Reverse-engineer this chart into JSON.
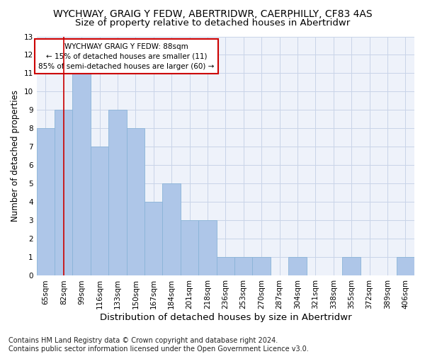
{
  "title": "WYCHWAY, GRAIG Y FEDW, ABERTRIDWR, CAERPHILLY, CF83 4AS",
  "subtitle": "Size of property relative to detached houses in Abertridwr",
  "xlabel": "Distribution of detached houses by size in Abertridwr",
  "ylabel": "Number of detached properties",
  "categories": [
    "65sqm",
    "82sqm",
    "99sqm",
    "116sqm",
    "133sqm",
    "150sqm",
    "167sqm",
    "184sqm",
    "201sqm",
    "218sqm",
    "236sqm",
    "253sqm",
    "270sqm",
    "287sqm",
    "304sqm",
    "321sqm",
    "338sqm",
    "355sqm",
    "372sqm",
    "389sqm",
    "406sqm"
  ],
  "values": [
    8,
    9,
    11,
    7,
    9,
    8,
    4,
    5,
    3,
    3,
    1,
    1,
    1,
    0,
    1,
    0,
    0,
    1,
    0,
    0,
    1
  ],
  "bar_color": "#aec6e8",
  "bar_edge_color": "#8ab4d8",
  "grid_color": "#c8d4e8",
  "annotation_text": "WYCHWAY GRAIG Y FEDW: 88sqm\n← 15% of detached houses are smaller (11)\n85% of semi-detached houses are larger (60) →",
  "annotation_box_color": "#ffffff",
  "annotation_box_edge_color": "#cc0000",
  "vline_color": "#cc0000",
  "vline_x": 1,
  "ylim": [
    0,
    13
  ],
  "yticks": [
    0,
    1,
    2,
    3,
    4,
    5,
    6,
    7,
    8,
    9,
    10,
    11,
    12,
    13
  ],
  "footnote": "Contains HM Land Registry data © Crown copyright and database right 2024.\nContains public sector information licensed under the Open Government Licence v3.0.",
  "title_fontsize": 10,
  "subtitle_fontsize": 9.5,
  "xlabel_fontsize": 9.5,
  "ylabel_fontsize": 8.5,
  "tick_fontsize": 7.5,
  "annot_fontsize": 7.5,
  "footnote_fontsize": 7
}
